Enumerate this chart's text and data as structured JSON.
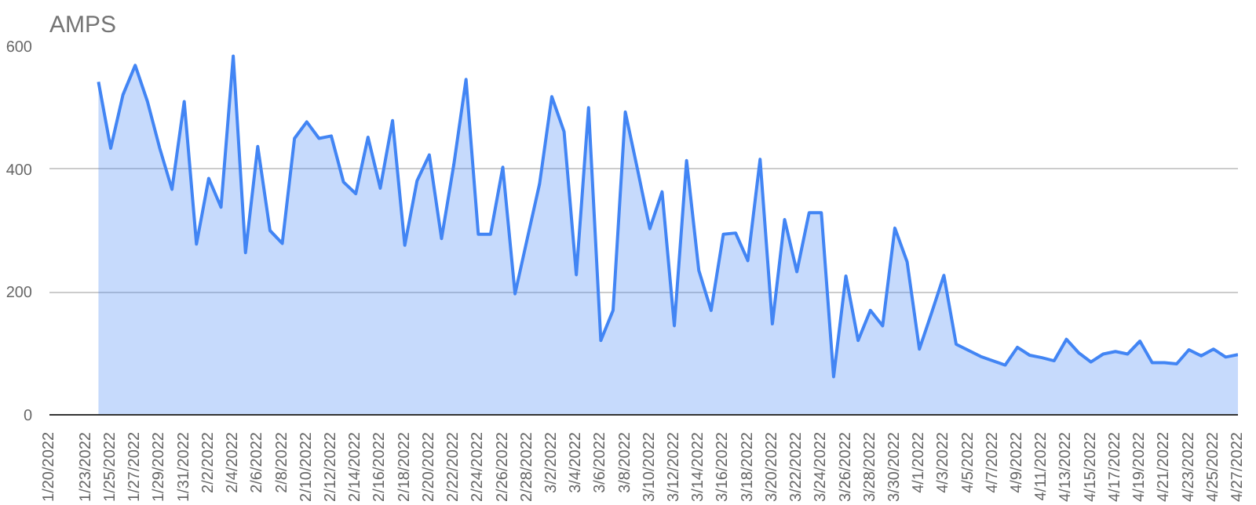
{
  "chart_data": {
    "type": "area",
    "title": "AMPS",
    "grid": "y",
    "x": [
      "2022-01-24",
      "2022-01-25",
      "2022-01-26",
      "2022-01-27",
      "2022-01-28",
      "2022-01-29",
      "2022-01-30",
      "2022-01-31",
      "2022-02-01",
      "2022-02-02",
      "2022-02-03",
      "2022-02-04",
      "2022-02-05",
      "2022-02-06",
      "2022-02-07",
      "2022-02-08",
      "2022-02-09",
      "2022-02-10",
      "2022-02-11",
      "2022-02-12",
      "2022-02-13",
      "2022-02-14",
      "2022-02-15",
      "2022-02-16",
      "2022-02-17",
      "2022-02-18",
      "2022-02-19",
      "2022-02-20",
      "2022-02-21",
      "2022-02-22",
      "2022-02-23",
      "2022-02-24",
      "2022-02-25",
      "2022-02-26",
      "2022-02-27",
      "2022-02-28",
      "2022-03-01",
      "2022-03-02",
      "2022-03-03",
      "2022-03-04",
      "2022-03-05",
      "2022-03-06",
      "2022-03-07",
      "2022-03-08",
      "2022-03-09",
      "2022-03-10",
      "2022-03-11",
      "2022-03-12",
      "2022-03-13",
      "2022-03-14",
      "2022-03-15",
      "2022-03-16",
      "2022-03-17",
      "2022-03-18",
      "2022-03-19",
      "2022-03-20",
      "2022-03-21",
      "2022-03-22",
      "2022-03-23",
      "2022-03-24",
      "2022-03-25",
      "2022-03-26",
      "2022-03-27",
      "2022-03-28",
      "2022-03-29",
      "2022-03-30",
      "2022-03-31",
      "2022-04-01",
      "2022-04-02",
      "2022-04-03",
      "2022-04-04",
      "2022-04-05",
      "2022-04-06",
      "2022-04-07",
      "2022-04-08",
      "2022-04-09",
      "2022-04-10",
      "2022-04-11",
      "2022-04-12",
      "2022-04-13",
      "2022-04-14",
      "2022-04-15",
      "2022-04-16",
      "2022-04-17",
      "2022-04-18",
      "2022-04-19",
      "2022-04-20",
      "2022-04-21",
      "2022-04-22",
      "2022-04-23",
      "2022-04-24",
      "2022-04-25",
      "2022-04-26",
      "2022-04-27"
    ],
    "series": [
      {
        "color": "#4285f4",
        "values": [
          542,
          434,
          521,
          569,
          510,
          434,
          367,
          510,
          278,
          385,
          338,
          584,
          264,
          437,
          300,
          279,
          450,
          477,
          450,
          454,
          379,
          360,
          452,
          369,
          479,
          276,
          381,
          423,
          287,
          407,
          546,
          294,
          294,
          403,
          197,
          287,
          376,
          518,
          461,
          228,
          500,
          121,
          170,
          493,
          399,
          303,
          363,
          145,
          414,
          235,
          170,
          294,
          296,
          251,
          416,
          148,
          318,
          233,
          329,
          329,
          62,
          226,
          121,
          170,
          145,
          304,
          249,
          107,
          166,
          227,
          115,
          105,
          95,
          88,
          81,
          110,
          97,
          93,
          88,
          123,
          101,
          86,
          99,
          103,
          99,
          120,
          85,
          85,
          83,
          106,
          96,
          107,
          94,
          98
        ]
      }
    ],
    "xlim": [
      "2022-01-20",
      "2022-04-27"
    ],
    "xticks": [
      {
        "value": "2022-01-20",
        "label": "1/20/2022"
      },
      {
        "value": "2022-01-23",
        "label": "1/23/2022"
      },
      {
        "value": "2022-01-25",
        "label": "1/25/2022"
      },
      {
        "value": "2022-01-27",
        "label": "1/27/2022"
      },
      {
        "value": "2022-01-29",
        "label": "1/29/2022"
      },
      {
        "value": "2022-01-31",
        "label": "1/31/2022"
      },
      {
        "value": "2022-02-02",
        "label": "2/2/2022"
      },
      {
        "value": "2022-02-04",
        "label": "2/4/2022"
      },
      {
        "value": "2022-02-06",
        "label": "2/6/2022"
      },
      {
        "value": "2022-02-08",
        "label": "2/8/2022"
      },
      {
        "value": "2022-02-10",
        "label": "2/10/2022"
      },
      {
        "value": "2022-02-12",
        "label": "2/12/2022"
      },
      {
        "value": "2022-02-14",
        "label": "2/14/2022"
      },
      {
        "value": "2022-02-16",
        "label": "2/16/2022"
      },
      {
        "value": "2022-02-18",
        "label": "2/18/2022"
      },
      {
        "value": "2022-02-20",
        "label": "2/20/2022"
      },
      {
        "value": "2022-02-22",
        "label": "2/22/2022"
      },
      {
        "value": "2022-02-24",
        "label": "2/24/2022"
      },
      {
        "value": "2022-02-26",
        "label": "2/26/2022"
      },
      {
        "value": "2022-02-28",
        "label": "2/28/2022"
      },
      {
        "value": "2022-03-02",
        "label": "3/2/2022"
      },
      {
        "value": "2022-03-04",
        "label": "3/4/2022"
      },
      {
        "value": "2022-03-06",
        "label": "3/6/2022"
      },
      {
        "value": "2022-03-08",
        "label": "3/8/2022"
      },
      {
        "value": "2022-03-10",
        "label": "3/10/2022"
      },
      {
        "value": "2022-03-12",
        "label": "3/12/2022"
      },
      {
        "value": "2022-03-14",
        "label": "3/14/2022"
      },
      {
        "value": "2022-03-16",
        "label": "3/16/2022"
      },
      {
        "value": "2022-03-18",
        "label": "3/18/2022"
      },
      {
        "value": "2022-03-20",
        "label": "3/20/2022"
      },
      {
        "value": "2022-03-22",
        "label": "3/22/2022"
      },
      {
        "value": "2022-03-24",
        "label": "3/24/2022"
      },
      {
        "value": "2022-03-26",
        "label": "3/26/2022"
      },
      {
        "value": "2022-03-28",
        "label": "3/28/2022"
      },
      {
        "value": "2022-03-30",
        "label": "3/30/2022"
      },
      {
        "value": "2022-04-01",
        "label": "4/1/2022"
      },
      {
        "value": "2022-04-03",
        "label": "4/3/2022"
      },
      {
        "value": "2022-04-05",
        "label": "4/5/2022"
      },
      {
        "value": "2022-04-07",
        "label": "4/7/2022"
      },
      {
        "value": "2022-04-09",
        "label": "4/9/2022"
      },
      {
        "value": "2022-04-11",
        "label": "4/11/2022"
      },
      {
        "value": "2022-04-13",
        "label": "4/13/2022"
      },
      {
        "value": "2022-04-15",
        "label": "4/15/2022"
      },
      {
        "value": "2022-04-17",
        "label": "4/17/2022"
      },
      {
        "value": "2022-04-19",
        "label": "4/19/2022"
      },
      {
        "value": "2022-04-21",
        "label": "4/21/2022"
      },
      {
        "value": "2022-04-23",
        "label": "4/23/2022"
      },
      {
        "value": "2022-04-25",
        "label": "4/25/2022"
      },
      {
        "value": "2022-04-27",
        "label": "4/27/2022"
      }
    ],
    "ylim": [
      0,
      600
    ],
    "yticks": [
      0,
      200,
      400,
      600
    ]
  }
}
